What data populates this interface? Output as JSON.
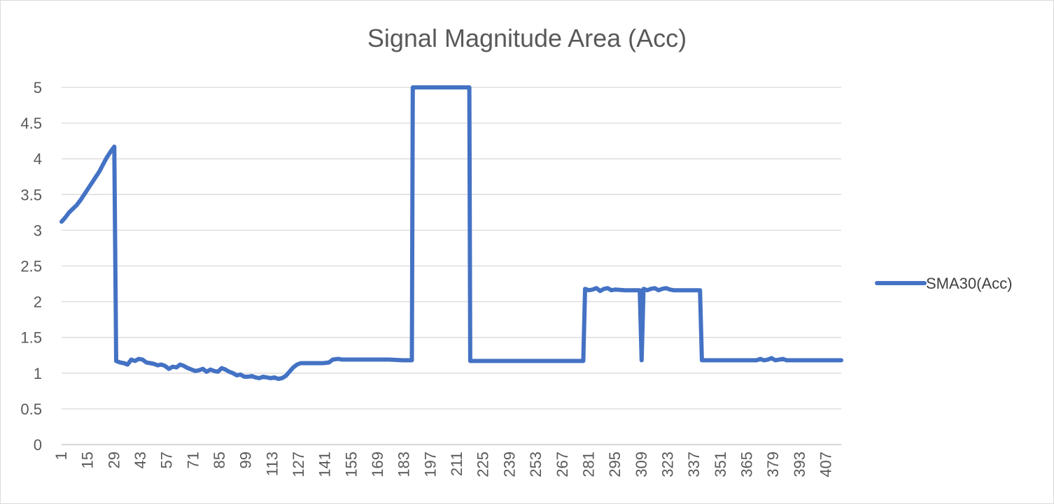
{
  "chart_data": {
    "type": "line",
    "title": "Signal Magnitude Area (Acc)",
    "xlabel": "",
    "ylabel": "",
    "ylim": [
      0,
      5
    ],
    "yticks": [
      "0",
      "0.5",
      "1",
      "1.5",
      "2",
      "2.5",
      "3",
      "3.5",
      "4",
      "4.5",
      "5"
    ],
    "xticks": [
      1,
      15,
      29,
      43,
      57,
      71,
      85,
      99,
      113,
      127,
      141,
      155,
      169,
      183,
      197,
      211,
      225,
      239,
      253,
      267,
      281,
      295,
      309,
      323,
      337,
      351,
      365,
      379,
      393,
      407
    ],
    "x_range": [
      1,
      415
    ],
    "grid": true,
    "legend_position": "right",
    "color": "#4472C4",
    "series": [
      {
        "name": "SMA30(Acc)",
        "points": [
          [
            1,
            3.12
          ],
          [
            3,
            3.18
          ],
          [
            5,
            3.25
          ],
          [
            7,
            3.3
          ],
          [
            9,
            3.35
          ],
          [
            11,
            3.42
          ],
          [
            13,
            3.5
          ],
          [
            15,
            3.58
          ],
          [
            17,
            3.66
          ],
          [
            19,
            3.74
          ],
          [
            21,
            3.82
          ],
          [
            23,
            3.92
          ],
          [
            25,
            4.02
          ],
          [
            27,
            4.1
          ],
          [
            29,
            4.17
          ],
          [
            30,
            1.17
          ],
          [
            32,
            1.15
          ],
          [
            34,
            1.14
          ],
          [
            36,
            1.12
          ],
          [
            38,
            1.19
          ],
          [
            40,
            1.17
          ],
          [
            42,
            1.2
          ],
          [
            44,
            1.19
          ],
          [
            46,
            1.15
          ],
          [
            48,
            1.14
          ],
          [
            50,
            1.13
          ],
          [
            52,
            1.11
          ],
          [
            54,
            1.12
          ],
          [
            56,
            1.1
          ],
          [
            58,
            1.06
          ],
          [
            60,
            1.09
          ],
          [
            62,
            1.08
          ],
          [
            64,
            1.12
          ],
          [
            66,
            1.1
          ],
          [
            68,
            1.07
          ],
          [
            70,
            1.05
          ],
          [
            72,
            1.03
          ],
          [
            74,
            1.04
          ],
          [
            76,
            1.06
          ],
          [
            78,
            1.02
          ],
          [
            80,
            1.05
          ],
          [
            82,
            1.03
          ],
          [
            84,
            1.02
          ],
          [
            86,
            1.07
          ],
          [
            88,
            1.05
          ],
          [
            90,
            1.02
          ],
          [
            92,
            1.0
          ],
          [
            94,
            0.97
          ],
          [
            96,
            0.98
          ],
          [
            98,
            0.95
          ],
          [
            100,
            0.95
          ],
          [
            102,
            0.96
          ],
          [
            104,
            0.94
          ],
          [
            106,
            0.93
          ],
          [
            108,
            0.95
          ],
          [
            110,
            0.94
          ],
          [
            112,
            0.93
          ],
          [
            114,
            0.94
          ],
          [
            116,
            0.92
          ],
          [
            118,
            0.93
          ],
          [
            120,
            0.96
          ],
          [
            122,
            1.02
          ],
          [
            124,
            1.08
          ],
          [
            126,
            1.12
          ],
          [
            128,
            1.14
          ],
          [
            130,
            1.14
          ],
          [
            140,
            1.14
          ],
          [
            143,
            1.15
          ],
          [
            145,
            1.19
          ],
          [
            148,
            1.2
          ],
          [
            150,
            1.19
          ],
          [
            155,
            1.19
          ],
          [
            170,
            1.19
          ],
          [
            175,
            1.19
          ],
          [
            182,
            1.18
          ],
          [
            187,
            1.18
          ],
          [
            187.5,
            5.0
          ],
          [
            217.5,
            5.0
          ],
          [
            218,
            1.17
          ],
          [
            240,
            1.17
          ],
          [
            260,
            1.17
          ],
          [
            278,
            1.17
          ],
          [
            279,
            2.18
          ],
          [
            281,
            2.16
          ],
          [
            283,
            2.17
          ],
          [
            285,
            2.19
          ],
          [
            287,
            2.15
          ],
          [
            289,
            2.18
          ],
          [
            291,
            2.19
          ],
          [
            293,
            2.16
          ],
          [
            295,
            2.17
          ],
          [
            300,
            2.16
          ],
          [
            308,
            2.16
          ],
          [
            309,
            1.18
          ],
          [
            310,
            2.18
          ],
          [
            312,
            2.16
          ],
          [
            314,
            2.18
          ],
          [
            316,
            2.19
          ],
          [
            318,
            2.16
          ],
          [
            320,
            2.18
          ],
          [
            322,
            2.19
          ],
          [
            324,
            2.17
          ],
          [
            326,
            2.16
          ],
          [
            330,
            2.16
          ],
          [
            340,
            2.16
          ],
          [
            341,
            1.18
          ],
          [
            350,
            1.18
          ],
          [
            360,
            1.18
          ],
          [
            370,
            1.18
          ],
          [
            372,
            1.2
          ],
          [
            374,
            1.18
          ],
          [
            376,
            1.19
          ],
          [
            378,
            1.21
          ],
          [
            380,
            1.18
          ],
          [
            382,
            1.19
          ],
          [
            384,
            1.2
          ],
          [
            386,
            1.18
          ],
          [
            390,
            1.18
          ],
          [
            400,
            1.18
          ],
          [
            415,
            1.18
          ]
        ]
      }
    ]
  }
}
